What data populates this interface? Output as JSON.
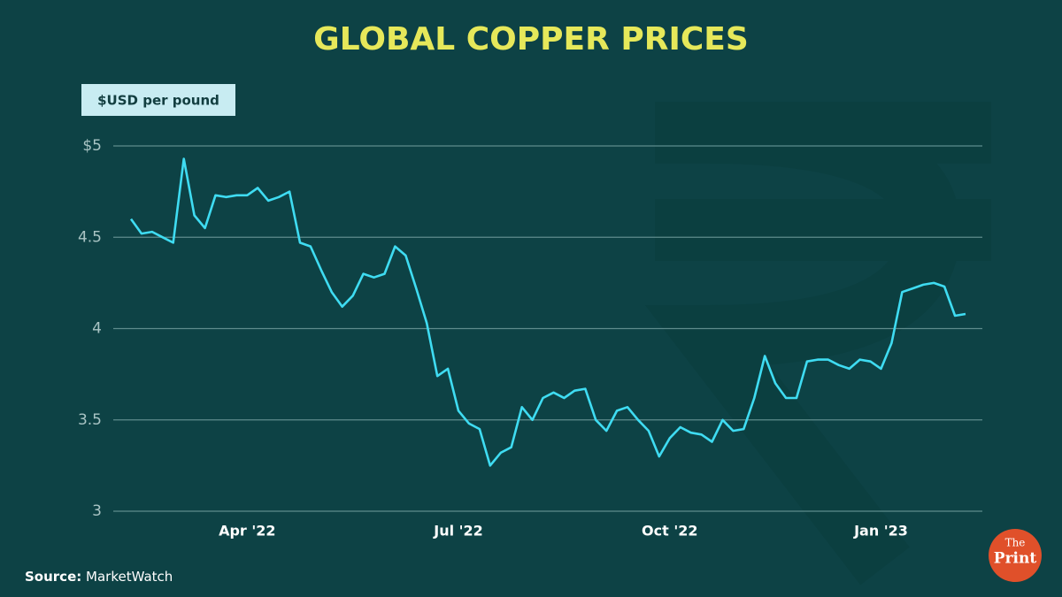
{
  "chart_data": {
    "type": "line",
    "title": "GLOBAL COPPER PRICES",
    "y_label": "$USD per pound",
    "source": {
      "label": "Source:",
      "text": "MarketWatch"
    },
    "logo": {
      "top": "The",
      "bottom": "Print"
    },
    "categories": [
      null,
      null,
      null,
      null,
      null,
      null,
      null,
      null,
      null,
      null,
      null,
      "Apr '22",
      null,
      null,
      null,
      null,
      null,
      null,
      null,
      null,
      null,
      null,
      null,
      null,
      null,
      null,
      null,
      null,
      null,
      null,
      null,
      "Jul '22",
      null,
      null,
      null,
      null,
      null,
      null,
      null,
      null,
      null,
      null,
      null,
      null,
      null,
      null,
      null,
      null,
      null,
      null,
      null,
      "Oct '22",
      null,
      null,
      null,
      null,
      null,
      null,
      null,
      null,
      null,
      null,
      null,
      null,
      null,
      null,
      null,
      null,
      null,
      null,
      null,
      "Jan '23",
      null,
      null,
      null,
      null,
      null,
      null,
      null,
      null
    ],
    "values": [
      4.6,
      4.52,
      4.53,
      4.5,
      4.47,
      4.93,
      4.62,
      4.55,
      4.73,
      4.72,
      4.73,
      4.73,
      4.77,
      4.7,
      4.72,
      4.75,
      4.47,
      4.45,
      4.32,
      4.2,
      4.12,
      4.18,
      4.3,
      4.28,
      4.3,
      4.45,
      4.4,
      4.22,
      4.03,
      3.74,
      3.78,
      3.55,
      3.48,
      3.45,
      3.25,
      3.32,
      3.35,
      3.57,
      3.5,
      3.62,
      3.65,
      3.62,
      3.66,
      3.67,
      3.5,
      3.44,
      3.55,
      3.57,
      3.5,
      3.44,
      3.3,
      3.4,
      3.46,
      3.43,
      3.42,
      3.38,
      3.5,
      3.44,
      3.45,
      3.62,
      3.85,
      3.7,
      3.62,
      3.62,
      3.82,
      3.83,
      3.83,
      3.8,
      3.78,
      3.83,
      3.82,
      3.78,
      3.92,
      4.2,
      4.22,
      4.24,
      4.25,
      4.23,
      4.07,
      4.08
    ],
    "color": "#3fdcf2",
    "ylim": [
      3,
      5
    ],
    "yticks": [
      3,
      3.5,
      4,
      4.5,
      {
        "value": 5,
        "label": "$5"
      }
    ],
    "grid": true
  }
}
